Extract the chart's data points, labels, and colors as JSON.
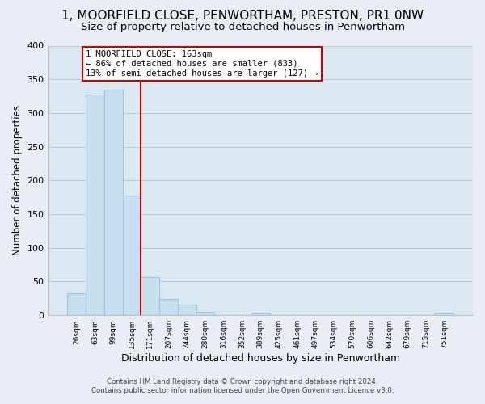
{
  "title": "1, MOORFIELD CLOSE, PENWORTHAM, PRESTON, PR1 0NW",
  "subtitle": "Size of property relative to detached houses in Penwortham",
  "xlabel": "Distribution of detached houses by size in Penwortham",
  "ylabel": "Number of detached properties",
  "bin_labels": [
    "26sqm",
    "63sqm",
    "99sqm",
    "135sqm",
    "171sqm",
    "207sqm",
    "244sqm",
    "280sqm",
    "316sqm",
    "352sqm",
    "389sqm",
    "425sqm",
    "461sqm",
    "497sqm",
    "534sqm",
    "570sqm",
    "606sqm",
    "642sqm",
    "679sqm",
    "715sqm",
    "751sqm"
  ],
  "bar_heights": [
    33,
    327,
    335,
    178,
    57,
    24,
    16,
    5,
    0,
    0,
    4,
    0,
    0,
    0,
    0,
    0,
    0,
    0,
    0,
    0,
    4
  ],
  "bar_color": "#c8dff0",
  "bar_edge_color": "#a0c4e0",
  "highlight_line_color": "#cc0000",
  "annotation_text": "1 MOORFIELD CLOSE: 163sqm\n← 86% of detached houses are smaller (833)\n13% of semi-detached houses are larger (127) →",
  "annotation_box_color": "#ffffff",
  "annotation_box_edge": "#cc0000",
  "ylim": [
    0,
    400
  ],
  "yticks": [
    0,
    50,
    100,
    150,
    200,
    250,
    300,
    350,
    400
  ],
  "footer_line1": "Contains HM Land Registry data © Crown copyright and database right 2024.",
  "footer_line2": "Contains public sector information licensed under the Open Government Licence v3.0.",
  "background_color": "#e8eef4",
  "plot_bg_color": "#dce8f0",
  "grid_color": "#b8ccd8",
  "title_fontsize": 11,
  "subtitle_fontsize": 9.5,
  "ylabel_fontsize": 8.5,
  "xlabel_fontsize": 9
}
